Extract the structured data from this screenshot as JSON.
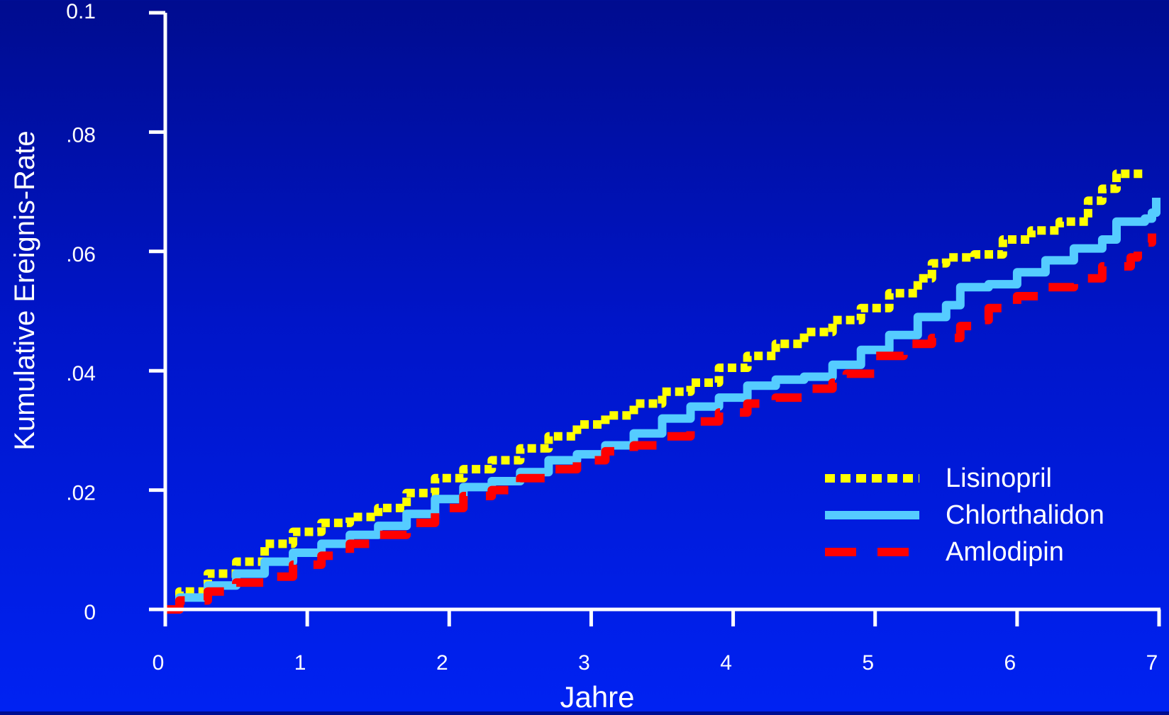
{
  "chart_data": {
    "type": "line",
    "title": "",
    "xlabel": "Jahre",
    "ylabel": "Kumulative Ereignis-Rate",
    "xlim": [
      0,
      7
    ],
    "ylim": [
      0,
      0.1
    ],
    "x_ticks": [
      0,
      1,
      2,
      3,
      4,
      5,
      6,
      7
    ],
    "x_tick_labels": [
      "0",
      "1",
      "2",
      "3",
      "4",
      "5",
      "6",
      "7"
    ],
    "y_ticks": [
      0,
      0.02,
      0.04,
      0.06,
      0.08,
      0.1
    ],
    "y_tick_labels": [
      "0",
      ".02",
      ".04",
      ".06",
      ".08",
      "0.1"
    ],
    "grid": false,
    "legend_position": "bottom-right",
    "series": [
      {
        "name": "Lisinopril",
        "color": "#ffff00",
        "style": "dotted",
        "x": [
          0,
          0.1,
          0.3,
          0.5,
          0.7,
          0.9,
          1.1,
          1.3,
          1.5,
          1.7,
          1.9,
          2.1,
          2.3,
          2.5,
          2.7,
          2.9,
          3.1,
          3.3,
          3.5,
          3.7,
          3.9,
          4.1,
          4.3,
          4.5,
          4.7,
          4.9,
          5.1,
          5.3,
          5.4,
          5.5,
          5.7,
          5.9,
          6.1,
          6.3,
          6.5,
          6.6,
          6.7,
          6.9
        ],
        "y": [
          0,
          0.003,
          0.006,
          0.008,
          0.011,
          0.013,
          0.0145,
          0.0155,
          0.017,
          0.0195,
          0.022,
          0.0235,
          0.025,
          0.027,
          0.029,
          0.031,
          0.0325,
          0.0345,
          0.0365,
          0.038,
          0.0405,
          0.0425,
          0.0445,
          0.0465,
          0.0485,
          0.0505,
          0.053,
          0.0555,
          0.058,
          0.059,
          0.0595,
          0.062,
          0.0635,
          0.065,
          0.0685,
          0.0705,
          0.073,
          0.073
        ]
      },
      {
        "name": "Chlorthalidon",
        "color": "#55ccff",
        "style": "solid",
        "x": [
          0,
          0.1,
          0.3,
          0.5,
          0.7,
          0.9,
          1.1,
          1.3,
          1.5,
          1.7,
          1.9,
          2.1,
          2.3,
          2.5,
          2.7,
          2.9,
          3.1,
          3.3,
          3.5,
          3.7,
          3.9,
          4.1,
          4.3,
          4.5,
          4.7,
          4.9,
          5.1,
          5.3,
          5.5,
          5.6,
          5.8,
          6.0,
          6.2,
          6.4,
          6.6,
          6.7,
          6.9,
          6.95,
          6.98
        ],
        "y": [
          0,
          0.002,
          0.004,
          0.006,
          0.008,
          0.0095,
          0.011,
          0.0125,
          0.014,
          0.016,
          0.0185,
          0.0205,
          0.0215,
          0.023,
          0.025,
          0.026,
          0.0275,
          0.0295,
          0.032,
          0.034,
          0.0355,
          0.0375,
          0.0385,
          0.039,
          0.041,
          0.0435,
          0.046,
          0.049,
          0.051,
          0.054,
          0.0545,
          0.0565,
          0.0585,
          0.0605,
          0.062,
          0.065,
          0.0655,
          0.0665,
          0.069
        ]
      },
      {
        "name": "Amlodipin",
        "color": "#ff0000",
        "style": "dashed",
        "x": [
          0,
          0.1,
          0.3,
          0.5,
          0.7,
          0.9,
          1.1,
          1.3,
          1.5,
          1.7,
          1.9,
          2.1,
          2.3,
          2.5,
          2.7,
          2.9,
          3.1,
          3.3,
          3.5,
          3.7,
          3.9,
          4.1,
          4.3,
          4.5,
          4.7,
          4.8,
          5.0,
          5.2,
          5.4,
          5.6,
          5.7,
          5.8,
          6.0,
          6.2,
          6.4,
          6.6,
          6.8,
          6.85,
          6.95
        ],
        "y": [
          0,
          0.0015,
          0.003,
          0.0045,
          0.0055,
          0.0075,
          0.009,
          0.011,
          0.0125,
          0.0145,
          0.017,
          0.019,
          0.02,
          0.022,
          0.0235,
          0.025,
          0.0265,
          0.0275,
          0.029,
          0.0315,
          0.033,
          0.0345,
          0.0355,
          0.037,
          0.038,
          0.0395,
          0.0425,
          0.0445,
          0.0455,
          0.0475,
          0.0485,
          0.0505,
          0.0525,
          0.054,
          0.0555,
          0.0575,
          0.059,
          0.0615,
          0.063
        ]
      }
    ]
  }
}
